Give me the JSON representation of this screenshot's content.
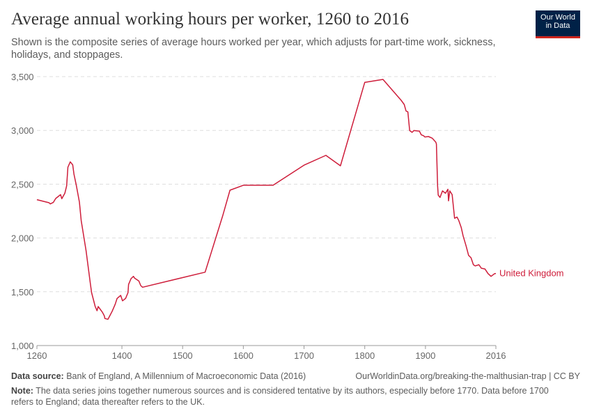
{
  "header": {
    "title": "Average annual working hours per worker, 1260 to 2016",
    "subtitle": "Shown is the composite series of average hours worked per year, which adjusts for part-time work, sickness, holidays, and stoppages.",
    "logo_line1": "Our World",
    "logo_line2": "in Data"
  },
  "footer": {
    "source_label": "Data source:",
    "source_text": " Bank of England, A Millennium of Macroeconomic Data (2016)",
    "url": "OurWorldinData.org/breaking-the-malthusian-trap | CC BY",
    "note_label": "Note:",
    "note_text": " The data series joins together numerous sources and is considered tentative by its authors, especially before 1770. Data before 1700 refers to England; data thereafter refers to the UK."
  },
  "chart_data": {
    "type": "line",
    "title": "Average annual working hours per worker, 1260 to 2016",
    "xlim": [
      1260,
      2016
    ],
    "ylim": [
      1000,
      3500
    ],
    "x_ticks": [
      "1260",
      "1400",
      "1500",
      "1600",
      "1700",
      "1800",
      "1900",
      "2016"
    ],
    "y_ticks": [
      "1,000",
      "1,500",
      "2,000",
      "2,500",
      "3,000",
      "3,500"
    ],
    "grid": "horizontal dashed",
    "line_color": "#ce1d3a",
    "series": [
      {
        "name": "United Kingdom",
        "x": [
          1260,
          1280,
          1282,
          1287,
          1291,
          1299,
          1301,
          1306,
          1309,
          1311,
          1315,
          1319,
          1321,
          1325,
          1330,
          1333,
          1341,
          1348,
          1350,
          1356,
          1359,
          1361,
          1368,
          1371,
          1372,
          1377,
          1380,
          1384,
          1389,
          1392,
          1398,
          1401,
          1406,
          1410,
          1411,
          1415,
          1419,
          1421,
          1428,
          1431,
          1434,
          1537,
          1566,
          1578,
          1600,
          1649,
          1700,
          1736,
          1760,
          1800,
          1830,
          1860,
          1865,
          1868,
          1871,
          1874,
          1878,
          1881,
          1890,
          1893,
          1897,
          1899,
          1905,
          1911,
          1917,
          1918,
          1920,
          1921,
          1924,
          1928,
          1933,
          1937,
          1938,
          1940,
          1944,
          1948,
          1952,
          1955,
          1959,
          1962,
          1967,
          1971,
          1975,
          1979,
          1982,
          1988,
          1992,
          1998,
          2003,
          2008,
          2014,
          2016
        ],
        "y": [
          2356,
          2328,
          2317,
          2330,
          2367,
          2403,
          2365,
          2416,
          2485,
          2658,
          2708,
          2680,
          2593,
          2485,
          2334,
          2161,
          1881,
          1578,
          1492,
          1363,
          1324,
          1363,
          1309,
          1276,
          1251,
          1244,
          1276,
          1319,
          1384,
          1438,
          1466,
          1416,
          1438,
          1492,
          1568,
          1622,
          1643,
          1626,
          1600,
          1557,
          1542,
          1682,
          2205,
          2444,
          2490,
          2490,
          2677,
          2768,
          2671,
          3446,
          3474,
          3280,
          3241,
          3181,
          3172,
          2999,
          2982,
          2999,
          2993,
          2960,
          2950,
          2939,
          2943,
          2928,
          2891,
          2874,
          2485,
          2399,
          2377,
          2438,
          2416,
          2453,
          2345,
          2438,
          2403,
          2183,
          2194,
          2161,
          2096,
          2021,
          1924,
          1838,
          1816,
          1751,
          1740,
          1751,
          1719,
          1712,
          1669,
          1643,
          1669,
          1670
        ]
      }
    ]
  }
}
